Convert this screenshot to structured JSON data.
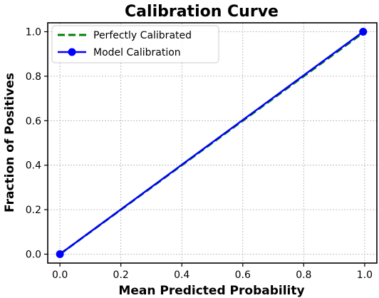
{
  "chart_data": {
    "type": "line",
    "title": "Calibration Curve",
    "xlabel": "Mean Predicted Probability",
    "ylabel": "Fraction of Positives",
    "xlim": [
      -0.04,
      1.04
    ],
    "ylim": [
      -0.04,
      1.04
    ],
    "xticks": [
      0.0,
      0.2,
      0.4,
      0.6,
      0.8,
      1.0
    ],
    "yticks": [
      0.0,
      0.2,
      0.4,
      0.6,
      0.8,
      1.0
    ],
    "xtick_labels": [
      "0.0",
      "0.2",
      "0.4",
      "0.6",
      "0.8",
      "1.0"
    ],
    "ytick_labels": [
      "0.0",
      "0.2",
      "0.4",
      "0.6",
      "0.8",
      "1.0"
    ],
    "grid": true,
    "legend_position": "top-left",
    "series": [
      {
        "name": "Perfectly Calibrated",
        "x": [
          0,
          1
        ],
        "y": [
          0,
          1
        ],
        "color": "#008000",
        "style": "dashed",
        "marker": "none"
      },
      {
        "name": "Model Calibration",
        "x": [
          0.0,
          0.995
        ],
        "y": [
          0.0,
          1.0
        ],
        "color": "#0000ff",
        "style": "solid",
        "marker": "circle"
      }
    ]
  }
}
